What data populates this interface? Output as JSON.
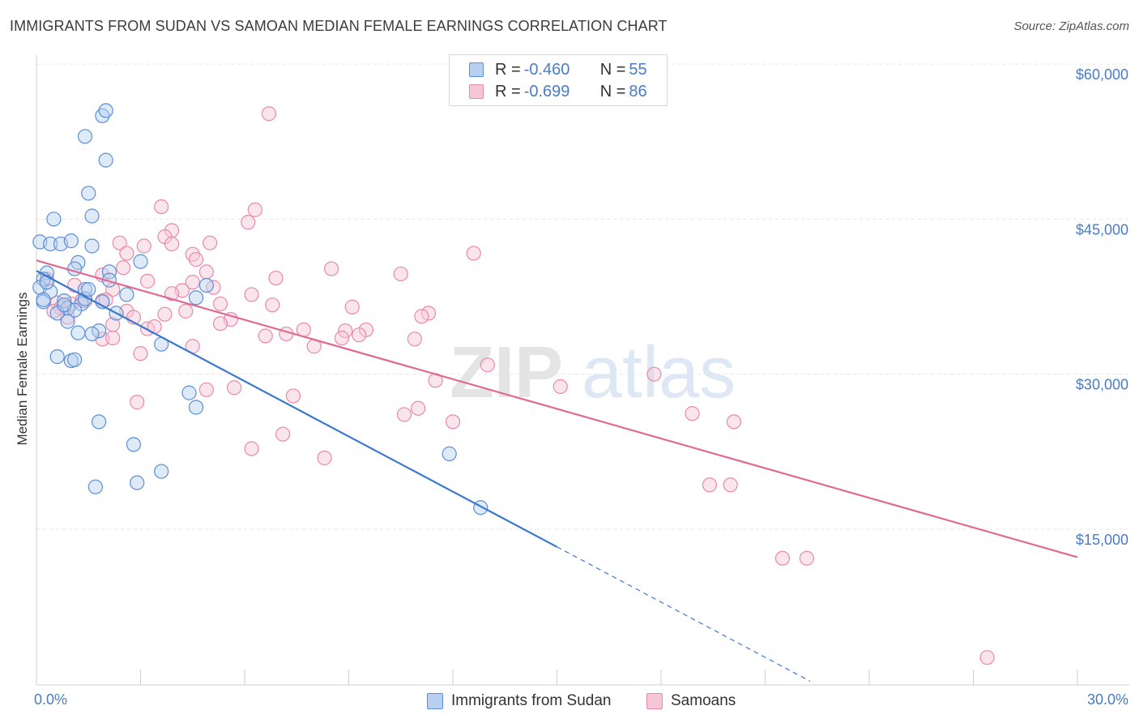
{
  "header": {
    "title": "IMMIGRANTS FROM SUDAN VS SAMOAN MEDIAN FEMALE EARNINGS CORRELATION CHART",
    "source": "Source: ZipAtlas.com"
  },
  "watermark": {
    "part1": "ZIP",
    "part2": "atlas"
  },
  "legend": {
    "rows": [
      {
        "r_label": "R = ",
        "r_value": "-0.460",
        "n_label": "N = ",
        "n_value": "55"
      },
      {
        "r_label": "R = ",
        "r_value": "-0.699",
        "n_label": "N = ",
        "n_value": "86"
      }
    ]
  },
  "bottom_legend": {
    "sudan": "Immigrants from Sudan",
    "samoans": "Samoans"
  },
  "colors": {
    "sudan_fill": "#b8d0f0",
    "sudan_stroke": "#5b8fd6",
    "sudan_line": "#3a78d0",
    "samoan_fill": "#f7c6d6",
    "samoan_stroke": "#e88aa8",
    "samoan_line": "#e06a92",
    "tick_label": "#4a7cc4"
  },
  "chart_data": {
    "type": "scatter",
    "title": "IMMIGRANTS FROM SUDAN VS SAMOAN MEDIAN FEMALE EARNINGS CORRELATION CHART",
    "xlabel": "",
    "ylabel": "Median Female Earnings",
    "xlim": [
      0,
      30
    ],
    "ylim": [
      0,
      63000
    ],
    "x_tick_labels": [
      "0.0%",
      "30.0%"
    ],
    "y_ticks": [
      15000,
      30000,
      45000,
      60000
    ],
    "y_tick_labels": [
      "$15,000",
      "$30,000",
      "$45,000",
      "$60,000"
    ],
    "grid": true,
    "legend_position": "top-center",
    "series": [
      {
        "name": "Immigrants from Sudan",
        "r": -0.46,
        "n": 55,
        "trend": {
          "x": [
            0.0,
            15.0
          ],
          "y": [
            40000,
            13300
          ],
          "dashed_to": [
            22.3,
            300
          ]
        },
        "points": [
          [
            1.9,
            55000
          ],
          [
            2.0,
            55500
          ],
          [
            1.4,
            53000
          ],
          [
            2.0,
            50700
          ],
          [
            1.5,
            47500
          ],
          [
            1.6,
            45300
          ],
          [
            0.5,
            45000
          ],
          [
            0.1,
            42800
          ],
          [
            0.4,
            42600
          ],
          [
            0.7,
            42600
          ],
          [
            1.0,
            42900
          ],
          [
            1.6,
            42400
          ],
          [
            3.0,
            40900
          ],
          [
            1.2,
            40800
          ],
          [
            1.1,
            40200
          ],
          [
            2.1,
            39900
          ],
          [
            0.3,
            39800
          ],
          [
            0.2,
            39200
          ],
          [
            2.1,
            39100
          ],
          [
            4.9,
            38600
          ],
          [
            0.1,
            38400
          ],
          [
            0.4,
            38000
          ],
          [
            1.4,
            38200
          ],
          [
            2.6,
            37700
          ],
          [
            4.6,
            37400
          ],
          [
            0.2,
            37000
          ],
          [
            0.8,
            37100
          ],
          [
            1.3,
            36800
          ],
          [
            0.9,
            36400
          ],
          [
            1.1,
            36200
          ],
          [
            0.6,
            35900
          ],
          [
            2.3,
            35900
          ],
          [
            0.9,
            35100
          ],
          [
            1.2,
            34000
          ],
          [
            1.8,
            34200
          ],
          [
            1.6,
            33900
          ],
          [
            0.6,
            31700
          ],
          [
            1.0,
            31300
          ],
          [
            1.1,
            31400
          ],
          [
            4.4,
            28200
          ],
          [
            4.6,
            26800
          ],
          [
            1.8,
            25400
          ],
          [
            2.8,
            23200
          ],
          [
            3.6,
            20600
          ],
          [
            2.9,
            19500
          ],
          [
            1.7,
            19100
          ],
          [
            12.8,
            17100
          ],
          [
            11.9,
            22300
          ],
          [
            1.4,
            37300
          ],
          [
            1.9,
            37000
          ],
          [
            0.3,
            38900
          ],
          [
            0.8,
            36700
          ],
          [
            1.5,
            38200
          ],
          [
            3.6,
            32900
          ],
          [
            0.2,
            37200
          ]
        ]
      },
      {
        "name": "Samoans",
        "r": -0.699,
        "n": 86,
        "trend": {
          "x": [
            0.0,
            30.0
          ],
          "y": [
            41000,
            12300
          ]
        },
        "points": [
          [
            6.7,
            55200
          ],
          [
            3.6,
            46200
          ],
          [
            6.3,
            45900
          ],
          [
            6.1,
            44700
          ],
          [
            3.9,
            43900
          ],
          [
            3.7,
            43300
          ],
          [
            2.4,
            42700
          ],
          [
            5.0,
            42700
          ],
          [
            3.1,
            42400
          ],
          [
            3.9,
            42600
          ],
          [
            2.6,
            41700
          ],
          [
            4.5,
            41600
          ],
          [
            12.6,
            41700
          ],
          [
            4.6,
            41100
          ],
          [
            2.5,
            40300
          ],
          [
            8.5,
            40200
          ],
          [
            1.9,
            39600
          ],
          [
            10.5,
            39700
          ],
          [
            4.9,
            39900
          ],
          [
            6.9,
            39300
          ],
          [
            3.2,
            39000
          ],
          [
            4.5,
            38900
          ],
          [
            1.1,
            38600
          ],
          [
            2.2,
            38200
          ],
          [
            4.2,
            38100
          ],
          [
            5.1,
            38400
          ],
          [
            3.9,
            37800
          ],
          [
            1.3,
            37100
          ],
          [
            1.9,
            37100
          ],
          [
            0.6,
            36900
          ],
          [
            1.0,
            36800
          ],
          [
            6.8,
            36700
          ],
          [
            9.1,
            36500
          ],
          [
            0.7,
            36400
          ],
          [
            2.6,
            36100
          ],
          [
            3.7,
            35800
          ],
          [
            11.3,
            35900
          ],
          [
            11.1,
            35600
          ],
          [
            2.8,
            35500
          ],
          [
            5.6,
            35300
          ],
          [
            0.9,
            35500
          ],
          [
            5.3,
            34900
          ],
          [
            2.2,
            34800
          ],
          [
            3.2,
            34400
          ],
          [
            7.7,
            34300
          ],
          [
            8.9,
            34200
          ],
          [
            9.5,
            34300
          ],
          [
            7.2,
            33900
          ],
          [
            9.3,
            33800
          ],
          [
            6.6,
            33700
          ],
          [
            8.8,
            33500
          ],
          [
            10.9,
            33400
          ],
          [
            1.9,
            33400
          ],
          [
            2.2,
            33500
          ],
          [
            4.5,
            32700
          ],
          [
            8.0,
            32700
          ],
          [
            3.0,
            32000
          ],
          [
            13.0,
            30900
          ],
          [
            17.8,
            30000
          ],
          [
            11.5,
            29400
          ],
          [
            15.1,
            28800
          ],
          [
            5.7,
            28700
          ],
          [
            4.9,
            28500
          ],
          [
            7.4,
            27900
          ],
          [
            2.9,
            27300
          ],
          [
            11.0,
            26700
          ],
          [
            10.6,
            26100
          ],
          [
            18.9,
            26200
          ],
          [
            20.1,
            25400
          ],
          [
            12.0,
            25400
          ],
          [
            7.1,
            24200
          ],
          [
            6.2,
            22800
          ],
          [
            8.3,
            21900
          ],
          [
            19.4,
            19300
          ],
          [
            20.0,
            19300
          ],
          [
            21.5,
            12200
          ],
          [
            22.2,
            12200
          ],
          [
            27.4,
            2600
          ],
          [
            0.3,
            39200
          ],
          [
            1.4,
            37100
          ],
          [
            0.5,
            36100
          ],
          [
            2.0,
            37200
          ],
          [
            3.4,
            34600
          ],
          [
            4.3,
            36100
          ],
          [
            5.3,
            36800
          ],
          [
            6.2,
            37700
          ]
        ]
      }
    ]
  }
}
